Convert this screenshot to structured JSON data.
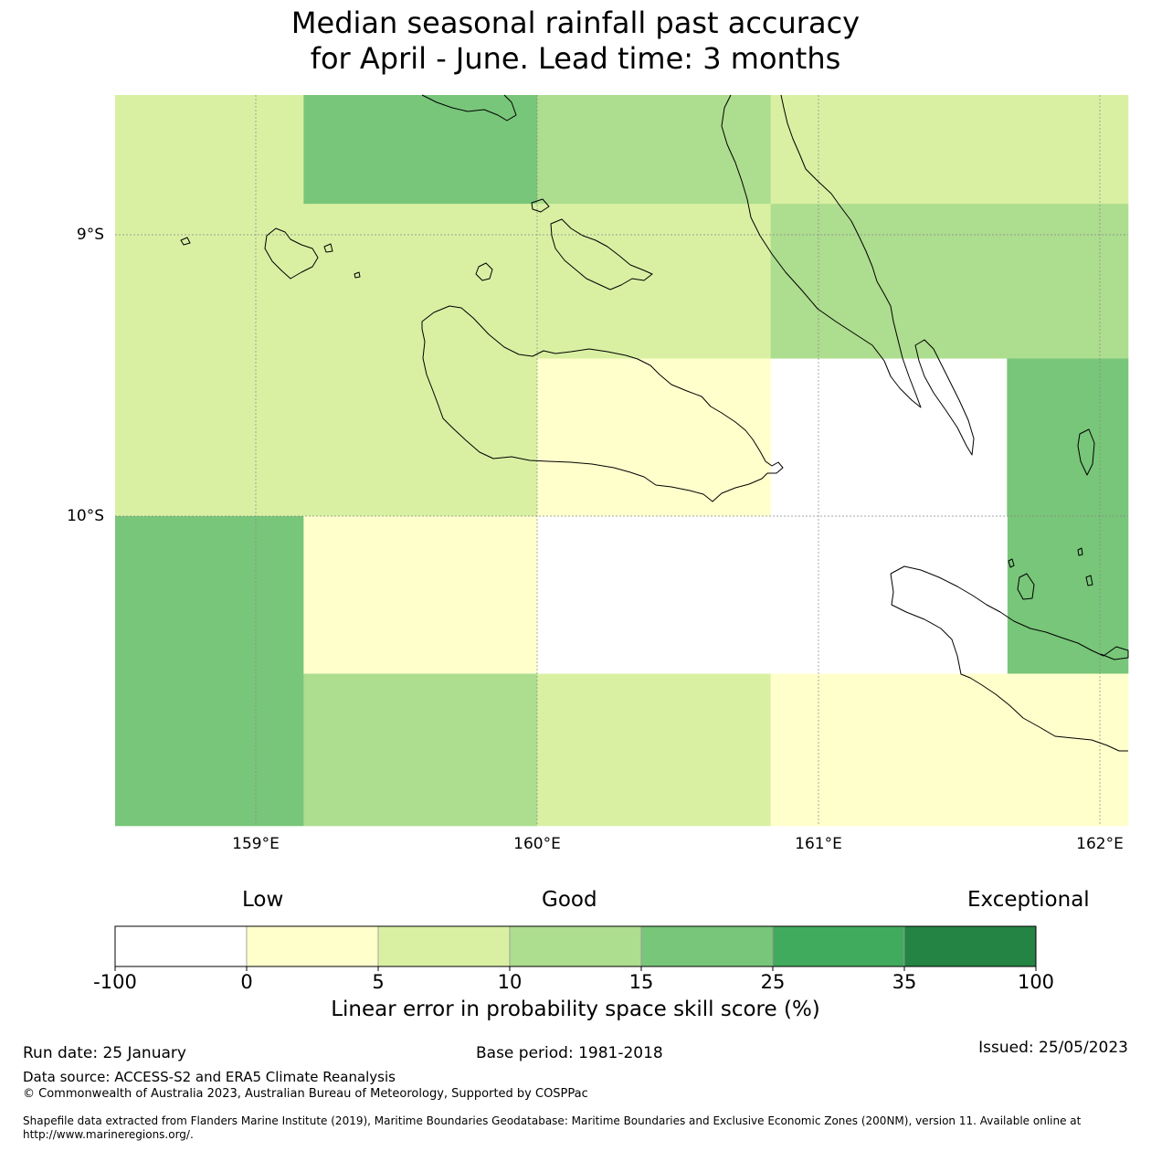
{
  "title_line1": "Median seasonal rainfall past accuracy",
  "title_line2": "for April - June. Lead time: 3 months",
  "map": {
    "lat_labels": [
      "9°S",
      "10°S"
    ],
    "lon_labels": [
      "159°E",
      "160°E",
      "161°E",
      "162°E"
    ],
    "lon_range_deg": [
      158.5,
      162.1
    ],
    "lat_range_deg": [
      -8.5,
      -11.1
    ],
    "grid_cells": [
      {
        "lon": [
          158.5,
          159.17
        ],
        "lat": [
          -8.5,
          -8.89
        ],
        "skill_range": "5-10"
      },
      {
        "lon": [
          159.17,
          160.0
        ],
        "lat": [
          -8.5,
          -8.89
        ],
        "skill_range": "15-25"
      },
      {
        "lon": [
          160.0,
          160.83
        ],
        "lat": [
          -8.5,
          -8.89
        ],
        "skill_range": "10-15"
      },
      {
        "lon": [
          160.83,
          162.1
        ],
        "lat": [
          -8.5,
          -8.89
        ],
        "skill_range": "5-10"
      },
      {
        "lon": [
          158.5,
          160.83
        ],
        "lat": [
          -8.89,
          -9.44
        ],
        "skill_range": "5-10"
      },
      {
        "lon": [
          160.83,
          162.1
        ],
        "lat": [
          -8.89,
          -9.44
        ],
        "skill_range": "10-15"
      },
      {
        "lon": [
          158.5,
          160.0
        ],
        "lat": [
          -9.44,
          -10.0
        ],
        "skill_range": "5-10"
      },
      {
        "lon": [
          160.0,
          160.83
        ],
        "lat": [
          -9.44,
          -10.0
        ],
        "skill_range": "0-5"
      },
      {
        "lon": [
          160.83,
          161.67
        ],
        "lat": [
          -9.44,
          -10.0
        ],
        "skill_range": "-100-0"
      },
      {
        "lon": [
          161.67,
          162.1
        ],
        "lat": [
          -9.44,
          -10.56
        ],
        "skill_range": "15-25"
      },
      {
        "lon": [
          158.5,
          159.17
        ],
        "lat": [
          -10.0,
          -11.1
        ],
        "skill_range": "15-25"
      },
      {
        "lon": [
          159.17,
          160.0
        ],
        "lat": [
          -10.0,
          -10.56
        ],
        "skill_range": "0-5"
      },
      {
        "lon": [
          160.0,
          161.67
        ],
        "lat": [
          -10.0,
          -10.56
        ],
        "skill_range": "-100-0"
      },
      {
        "lon": [
          159.17,
          160.0
        ],
        "lat": [
          -10.56,
          -11.1
        ],
        "skill_range": "10-15"
      },
      {
        "lon": [
          160.0,
          160.83
        ],
        "lat": [
          -10.56,
          -11.1
        ],
        "skill_range": "5-10"
      },
      {
        "lon": [
          160.83,
          162.1
        ],
        "lat": [
          -10.56,
          -11.1
        ],
        "skill_range": "0-5"
      }
    ]
  },
  "colorbar": {
    "category_low": "Low",
    "category_good": "Good",
    "category_exceptional": "Exceptional",
    "bins": [
      {
        "from": "-100",
        "to": "0",
        "color": "#ffffff"
      },
      {
        "from": "0",
        "to": "5",
        "color": "#ffffcc"
      },
      {
        "from": "5",
        "to": "10",
        "color": "#d9f0a3"
      },
      {
        "from": "10",
        "to": "15",
        "color": "#addd8e"
      },
      {
        "from": "15",
        "to": "25",
        "color": "#78c679"
      },
      {
        "from": "25",
        "to": "35",
        "color": "#41ab5d"
      },
      {
        "from": "35",
        "to": "100",
        "color": "#238443"
      }
    ],
    "ticks": [
      "-100",
      "0",
      "5",
      "10",
      "15",
      "25",
      "35",
      "100"
    ],
    "label": "Linear error in probability space skill score (%)"
  },
  "footer": {
    "run_date": "Run date: 25 January",
    "base_period": "Base period: 1981-2018",
    "issued": "Issued: 25/05/2023",
    "data_source": "Data source: ACCESS-S2 and ERA5 Climate Reanalysis",
    "copyright": "© Commonwealth of Australia 2023, Australian Bureau of Meteorology, Supported by COSPPac",
    "shapefile": "Shapefile data extracted from Flanders Marine Institute (2019), Maritime Boundaries Geodatabase: Maritime Boundaries and Exclusive Economic Zones (200NM), version 11. Available online at http://www.marineregions.org/."
  }
}
